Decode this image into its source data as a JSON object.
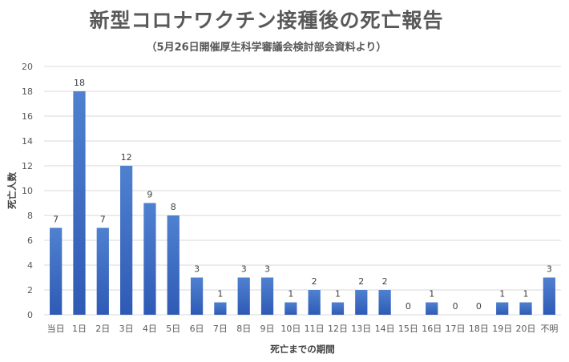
{
  "title": "新型コロナワクチン接種後の死亡報告",
  "subtitle": "（5月26日開催厚生科学審議会検討部会資料より）",
  "chart_data": {
    "type": "bar",
    "title": "新型コロナワクチン接種後の死亡報告",
    "subtitle": "（5月26日開催厚生科学審議会検討部会資料より）",
    "xlabel": "死亡までの期間",
    "ylabel": "死亡人数",
    "categories": [
      "当日",
      "1日",
      "2日",
      "3日",
      "4日",
      "5日",
      "6日",
      "7日",
      "8日",
      "9日",
      "10日",
      "11日",
      "12日",
      "13日",
      "14日",
      "15日",
      "16日",
      "17日",
      "18日",
      "19日",
      "20日",
      "不明"
    ],
    "values": [
      7,
      18,
      7,
      12,
      9,
      8,
      3,
      1,
      3,
      3,
      1,
      2,
      1,
      2,
      2,
      0,
      1,
      0,
      0,
      1,
      1,
      3
    ],
    "yticks": [
      0,
      2,
      4,
      6,
      8,
      10,
      12,
      14,
      16,
      18,
      20
    ],
    "ylim": [
      0,
      20
    ],
    "grid": true,
    "legend": "none",
    "colors": {
      "bar_top": "#4f81d0",
      "bar_bottom": "#2e5ab5",
      "grid": "#d9d9d9",
      "text": "#595959"
    }
  }
}
